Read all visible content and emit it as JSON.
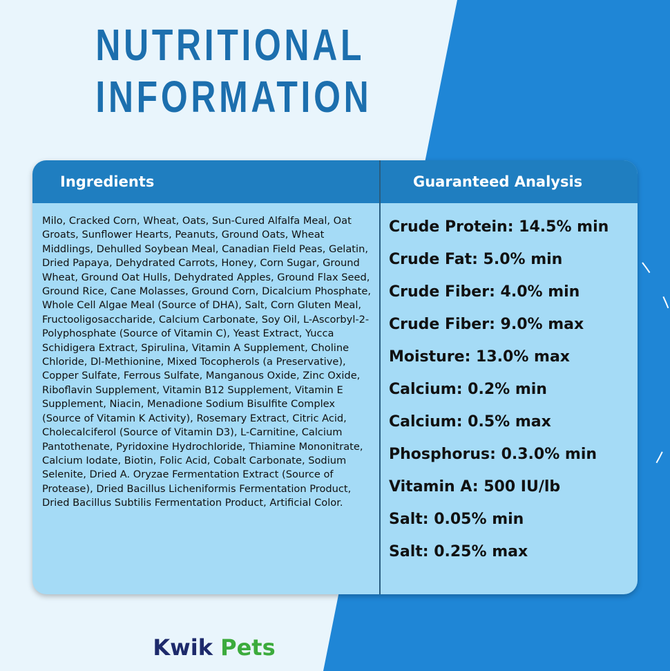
{
  "title": {
    "line1": "NUTRITIONAL",
    "line2": "INFORMATION"
  },
  "table": {
    "headers": [
      "Ingredients",
      "Guaranteed Analysis"
    ],
    "ingredients": "Milo, Cracked Corn, Wheat, Oats, Sun-Cured Alfalfa Meal, Oat Groats, Sunflower Hearts, Peanuts, Ground Oats, Wheat Middlings, Dehulled Soybean Meal, Canadian Field Peas, Gelatin, Dried Papaya, Dehydrated Carrots, Honey, Corn Sugar, Ground Wheat, Ground Oat Hulls, Dehydrated Apples, Ground Flax Seed, Ground Rice, Cane Molasses, Ground Corn, Dicalcium Phosphate, Whole Cell Algae Meal (Source of DHA), Salt, Corn Gluten Meal, Fructooligosaccharide, Calcium Carbonate, Soy Oil, L-Ascorbyl-2-Polyphosphate (Source of Vitamin C), Yeast Extract, Yucca Schidigera Extract, Spirulina, Vitamin A Supplement, Choline Chloride, Dl-Methionine, Mixed Tocopherols (a Preservative), Copper Sulfate, Ferrous Sulfate, Manganous Oxide, Zinc Oxide, Riboflavin Supplement, Vitamin B12 Supplement, Vitamin E Supplement, Niacin, Menadione Sodium Bisulfite Complex (Source of Vitamin K Activity), Rosemary Extract, Citric Acid, Cholecalciferol (Source of Vitamin D3), L-Carnitine, Calcium Pantothenate, Pyridoxine Hydrochloride, Thiamine Mononitrate, Calcium Iodate, Biotin, Folic Acid, Cobalt Carbonate, Sodium Selenite, Dried A. Oryzae Fermentation Extract (Source of Protease), Dried Bacillus Licheniformis Fermentation Product, Dried Bacillus Subtilis Fermentation Product, Artificial Color.",
    "analysis": [
      "Crude Protein: 14.5% min",
      "Crude Fat: 5.0% min",
      "Crude Fiber: 4.0% min",
      "Crude Fiber: 9.0% max",
      "Moisture: 13.0% max",
      "Calcium: 0.2% min",
      "Calcium: 0.5% max",
      "Phosphorus: 0.3.0% min",
      "Vitamin A: 500 IU/lb",
      "Salt: 0.05% min",
      "Salt: 0.25% max"
    ]
  },
  "logo": {
    "word1": "Kwik",
    "word2": "Pets"
  }
}
